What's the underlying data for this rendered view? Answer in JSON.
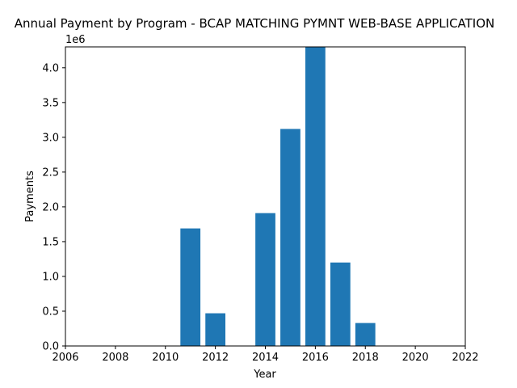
{
  "chart_data": {
    "type": "bar",
    "title": "Annual Payment by Program - BCAP MATCHING PYMNT WEB-BASE APPLICATION",
    "xlabel": "Year",
    "ylabel": "Payments",
    "y_offset_label": "1e6",
    "x": [
      2011,
      2012,
      2014,
      2015,
      2016,
      2017,
      2018
    ],
    "values": [
      1690000,
      470000,
      1910000,
      3120000,
      4300000,
      1200000,
      330000
    ],
    "xlim": [
      2006,
      2022
    ],
    "ylim": [
      0,
      4300000
    ],
    "x_ticks": [
      2006,
      2008,
      2010,
      2012,
      2014,
      2016,
      2018,
      2020,
      2022
    ],
    "y_ticks": [
      0,
      500000,
      1000000,
      1500000,
      2000000,
      2500000,
      3000000,
      3500000,
      4000000
    ],
    "y_tick_labels": [
      "0.0",
      "0.5",
      "1.0",
      "1.5",
      "2.0",
      "2.5",
      "3.0",
      "3.5",
      "4.0"
    ],
    "bar_color": "#1f77b4",
    "grid": false,
    "legend": "none"
  }
}
